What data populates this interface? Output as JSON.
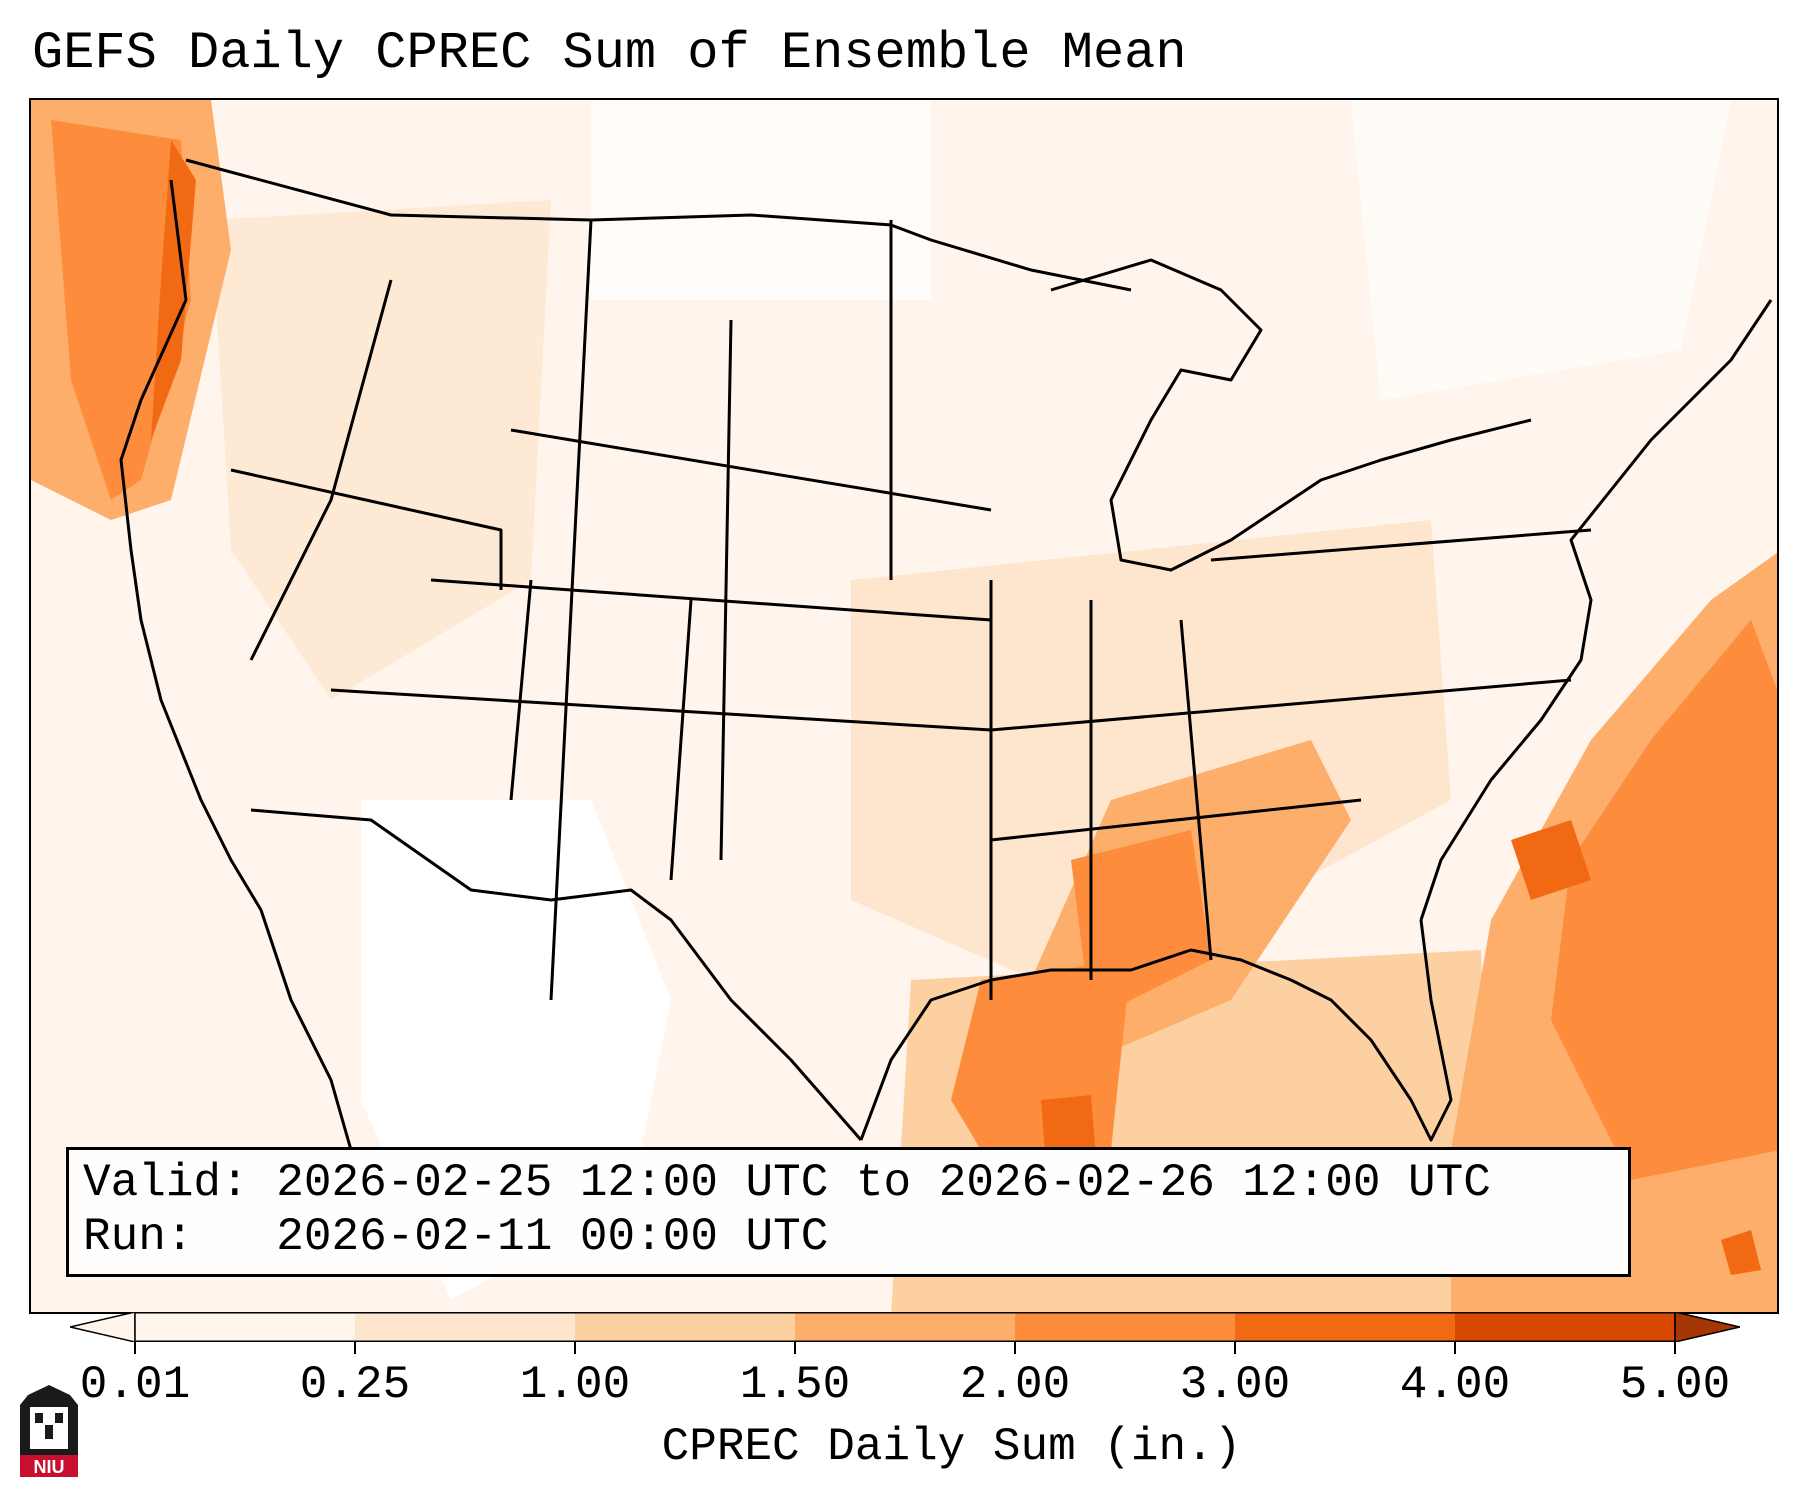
{
  "title": "GEFS Daily CPREC Sum of Ensemble Mean",
  "info": {
    "valid_label": "Valid:",
    "valid_value": "2026-02-25 12:00 UTC to 2026-02-26 12:00 UTC",
    "run_label": "Run:",
    "run_value": "2026-02-11 00:00 UTC"
  },
  "colorbar": {
    "label": "CPREC Daily Sum (in.)",
    "levels": [
      "0.01",
      "0.25",
      "1.00",
      "1.50",
      "2.00",
      "3.00",
      "4.00",
      "5.00"
    ],
    "colors": [
      "#fff5eb",
      "#fee6ce",
      "#fdd0a2",
      "#fdae6b",
      "#fd8d3c",
      "#f16913",
      "#d94801",
      "#a63603"
    ],
    "extend": "both"
  },
  "logo": {
    "text": "NIU",
    "color": "#c8102e"
  }
}
